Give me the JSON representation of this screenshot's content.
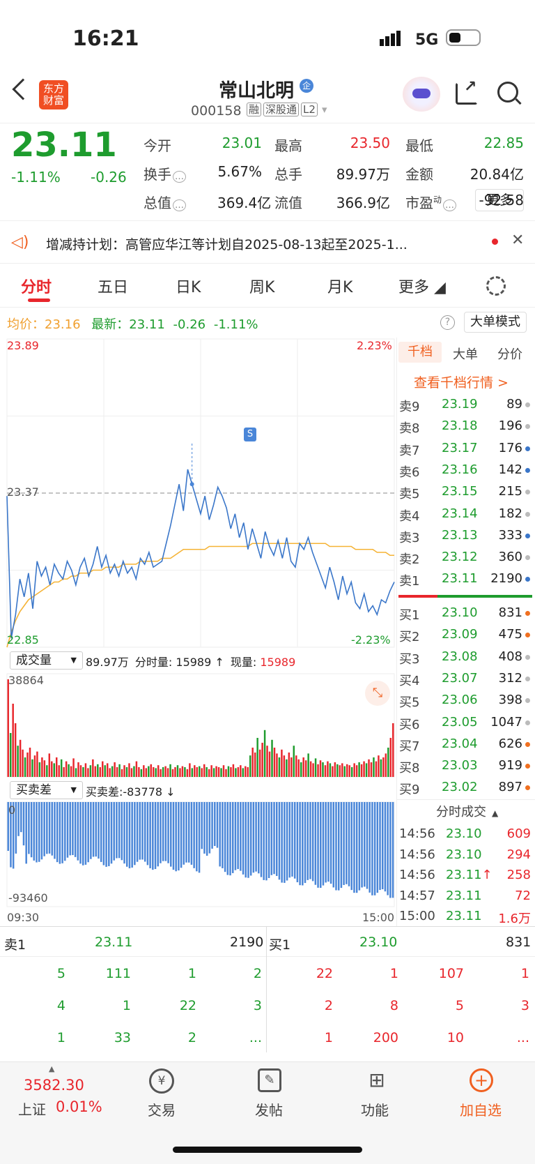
{
  "status": {
    "time": "16:21",
    "network": "5G"
  },
  "header": {
    "logo": "东方财富",
    "name": "常山北明",
    "badge": "企",
    "code": "000158",
    "tags": [
      "融",
      "深股通",
      "L2"
    ]
  },
  "quote": {
    "price": "23.11",
    "pct": "-1.11%",
    "chg": "-0.26",
    "stats": [
      {
        "label": "今开",
        "value": "23.01",
        "color": "green"
      },
      {
        "label": "最高",
        "value": "23.50",
        "color": "red"
      },
      {
        "label": "最低",
        "value": "22.85",
        "color": "green"
      },
      {
        "label": "换手",
        "value": "5.67%",
        "color": "dark"
      },
      {
        "label": "总手",
        "value": "89.97万",
        "color": "dark"
      },
      {
        "label": "金额",
        "value": "20.84亿",
        "color": "dark"
      },
      {
        "label": "总值",
        "value": "369.4亿",
        "color": "dark"
      },
      {
        "label": "流值",
        "value": "366.9亿",
        "color": "dark"
      },
      {
        "label": "市盈",
        "sup": "动",
        "value": "-92.58",
        "color": "dark"
      }
    ],
    "more_label": "更多"
  },
  "notice": {
    "text": "增减持计划：高管应华江等计划自2025-08-13起至2025-1..."
  },
  "tabs": [
    "分时",
    "五日",
    "日K",
    "周K",
    "月K",
    "更多"
  ],
  "legend": {
    "avg_label": "均价：",
    "avg_value": "23.16",
    "latest_label": "最新：",
    "latest_value": "23.11",
    "chg": "-0.26",
    "pct": "-1.11%",
    "big_mode": "大单模式"
  },
  "chart_data": {
    "type": "line",
    "y_max": "23.89",
    "y_min": "22.85",
    "y_mid": "23.37",
    "pct_max": "2.23%",
    "pct_min": "-2.23%",
    "ylim": [
      22.85,
      23.89
    ],
    "price_series": [
      23.36,
      22.88,
      22.96,
      23.08,
      23.02,
      23.1,
      22.98,
      23.14,
      23.09,
      23.12,
      23.06,
      23.13,
      23.1,
      23.08,
      23.14,
      23.11,
      23.06,
      23.12,
      23.15,
      23.09,
      23.13,
      23.19,
      23.12,
      23.16,
      23.1,
      23.13,
      23.09,
      23.14,
      23.1,
      23.12,
      23.08,
      23.15,
      23.13,
      23.17,
      23.12,
      23.13,
      23.14,
      23.2,
      23.26,
      23.33,
      23.4,
      23.31,
      23.45,
      23.4,
      23.35,
      23.3,
      23.36,
      23.28,
      23.33,
      23.39,
      23.36,
      23.32,
      23.25,
      23.3,
      23.22,
      23.27,
      23.18,
      23.25,
      23.2,
      23.15,
      23.24,
      23.19,
      23.16,
      23.21,
      23.15,
      23.22,
      23.14,
      23.12,
      23.2,
      23.18,
      23.22,
      23.17,
      23.13,
      23.09,
      23.05,
      23.12,
      23.07,
      23.01,
      23.09,
      23.03,
      23.07,
      23.0,
      22.98,
      23.03,
      22.97,
      22.99,
      22.96,
      23.01,
      23.0,
      23.04,
      23.07
    ],
    "avg_series": [
      22.85,
      22.9,
      22.94,
      22.97,
      22.99,
      23.01,
      23.02,
      23.03,
      23.04,
      23.05,
      23.06,
      23.07,
      23.07,
      23.08,
      23.08,
      23.09,
      23.09,
      23.1,
      23.1,
      23.1,
      23.11,
      23.11,
      23.11,
      23.12,
      23.12,
      23.12,
      23.12,
      23.13,
      23.13,
      23.13,
      23.13,
      23.14,
      23.14,
      23.14,
      23.14,
      23.14,
      23.15,
      23.15,
      23.15,
      23.16,
      23.17,
      23.18,
      23.18,
      23.18,
      23.18,
      23.18,
      23.18,
      23.19,
      23.19,
      23.19,
      23.19,
      23.19,
      23.19,
      23.19,
      23.19,
      23.19,
      23.19,
      23.2,
      23.2,
      23.2,
      23.2,
      23.2,
      23.2,
      23.2,
      23.2,
      23.2,
      23.2,
      23.2,
      23.2,
      23.2,
      23.2,
      23.2,
      23.2,
      23.2,
      23.2,
      23.19,
      23.19,
      23.19,
      23.19,
      23.19,
      23.19,
      23.18,
      23.18,
      23.18,
      23.18,
      23.18,
      23.17,
      23.17,
      23.17,
      23.16,
      23.16
    ],
    "marker": "S",
    "x_start": "09:30",
    "x_end": "15:00"
  },
  "volume": {
    "selector": "成交量",
    "total": "89.97万",
    "tick_label": "分时量: 15989 ↑",
    "now_label": "现量: ",
    "now_value": "15989",
    "max": "38864",
    "bars": [
      1.0,
      0.45,
      0.75,
      0.55,
      0.32,
      0.38,
      0.28,
      0.2,
      0.25,
      0.3,
      0.18,
      0.22,
      0.26,
      0.15,
      0.2,
      0.17,
      0.12,
      0.24,
      0.16,
      0.14,
      0.2,
      0.12,
      0.18,
      0.1,
      0.16,
      0.13,
      0.11,
      0.19,
      0.09,
      0.15,
      0.12,
      0.1,
      0.14,
      0.09,
      0.12,
      0.18,
      0.11,
      0.13,
      0.1,
      0.16,
      0.12,
      0.14,
      0.09,
      0.11,
      0.15,
      0.1,
      0.13,
      0.08,
      0.12,
      0.1,
      0.14,
      0.09,
      0.11,
      0.16,
      0.1,
      0.08,
      0.12,
      0.09,
      0.11,
      0.13,
      0.1,
      0.09,
      0.12,
      0.08,
      0.1,
      0.11,
      0.09,
      0.13,
      0.08,
      0.1,
      0.12,
      0.09,
      0.11,
      0.1,
      0.08,
      0.14,
      0.09,
      0.12,
      0.1,
      0.11,
      0.09,
      0.13,
      0.1,
      0.08,
      0.12,
      0.09,
      0.11,
      0.1,
      0.09,
      0.12,
      0.08,
      0.11,
      0.1,
      0.13,
      0.09,
      0.1,
      0.12,
      0.09,
      0.11,
      0.1,
      0.22,
      0.3,
      0.25,
      0.4,
      0.28,
      0.35,
      0.48,
      0.32,
      0.26,
      0.38,
      0.3,
      0.24,
      0.2,
      0.28,
      0.22,
      0.18,
      0.25,
      0.2,
      0.32,
      0.22,
      0.18,
      0.15,
      0.2,
      0.17,
      0.24,
      0.16,
      0.14,
      0.19,
      0.13,
      0.17,
      0.15,
      0.12,
      0.16,
      0.14,
      0.11,
      0.15,
      0.13,
      0.12,
      0.14,
      0.11,
      0.13,
      0.12,
      0.1,
      0.14,
      0.12,
      0.15,
      0.13,
      0.16,
      0.14,
      0.18,
      0.15,
      0.2,
      0.16,
      0.22,
      0.18,
      0.2,
      0.24,
      0.3,
      0.4,
      0.55
    ]
  },
  "diff": {
    "selector": "买卖差",
    "value": "买卖差:-83778 ↓",
    "max": "0",
    "min": "-93460"
  },
  "orderbook": {
    "tabs": [
      "千档",
      "大单",
      "分价"
    ],
    "link": "查看千档行情 >",
    "asks": [
      {
        "l": "卖9",
        "p": "23.19",
        "v": "89"
      },
      {
        "l": "卖8",
        "p": "23.18",
        "v": "196"
      },
      {
        "l": "卖7",
        "p": "23.17",
        "v": "176"
      },
      {
        "l": "卖6",
        "p": "23.16",
        "v": "142"
      },
      {
        "l": "卖5",
        "p": "23.15",
        "v": "215"
      },
      {
        "l": "卖4",
        "p": "23.14",
        "v": "182"
      },
      {
        "l": "卖3",
        "p": "23.13",
        "v": "333"
      },
      {
        "l": "卖2",
        "p": "23.12",
        "v": "360"
      },
      {
        "l": "卖1",
        "p": "23.11",
        "v": "2190"
      }
    ],
    "ask_dots": [
      "#bbb",
      "#bbb",
      "#3a76c9",
      "#3a76c9",
      "#bbb",
      "#bbb",
      "#3a76c9",
      "#bbb",
      "#3a76c9"
    ],
    "bids": [
      {
        "l": "买1",
        "p": "23.10",
        "v": "831"
      },
      {
        "l": "买2",
        "p": "23.09",
        "v": "475"
      },
      {
        "l": "买3",
        "p": "23.08",
        "v": "408"
      },
      {
        "l": "买4",
        "p": "23.07",
        "v": "312"
      },
      {
        "l": "买5",
        "p": "23.06",
        "v": "398"
      },
      {
        "l": "买6",
        "p": "23.05",
        "v": "1047"
      },
      {
        "l": "买7",
        "p": "23.04",
        "v": "626"
      },
      {
        "l": "买8",
        "p": "23.03",
        "v": "919"
      },
      {
        "l": "买9",
        "p": "23.02",
        "v": "897"
      }
    ],
    "bid_dots": [
      "#f07020",
      "#f07020",
      "#bbb",
      "#bbb",
      "#bbb",
      "#bbb",
      "#f07020",
      "#f07020",
      "#f07020"
    ]
  },
  "ticks": {
    "title": "分时成交",
    "rows": [
      {
        "t": "14:56",
        "p": "23.10",
        "v": "609",
        "arrow": ""
      },
      {
        "t": "14:56",
        "p": "23.10",
        "v": "294",
        "arrow": ""
      },
      {
        "t": "14:56",
        "p": "23.11",
        "v": "258",
        "arrow": "↑"
      },
      {
        "t": "14:57",
        "p": "23.11",
        "v": "72",
        "arrow": ""
      },
      {
        "t": "15:00",
        "p": "23.11",
        "v": "1.6万",
        "arrow": ""
      }
    ]
  },
  "queue": {
    "sell_label": "卖1",
    "sell_price": "23.11",
    "sell_vol": "2190",
    "buy_label": "买1",
    "buy_price": "23.10",
    "buy_vol": "831",
    "sell_rows": [
      [
        "5",
        "111",
        "1",
        "2"
      ],
      [
        "4",
        "1",
        "22",
        "3"
      ],
      [
        "1",
        "33",
        "2",
        "..."
      ]
    ],
    "buy_rows": [
      [
        "22",
        "1",
        "107",
        "1"
      ],
      [
        "2",
        "8",
        "5",
        "3"
      ],
      [
        "1",
        "200",
        "10",
        "..."
      ]
    ]
  },
  "bottom": {
    "index_value": "3582.30",
    "index_name": "上证",
    "index_pct": "0.01%",
    "nav": [
      "交易",
      "发帖",
      "功能",
      "加自选"
    ]
  }
}
